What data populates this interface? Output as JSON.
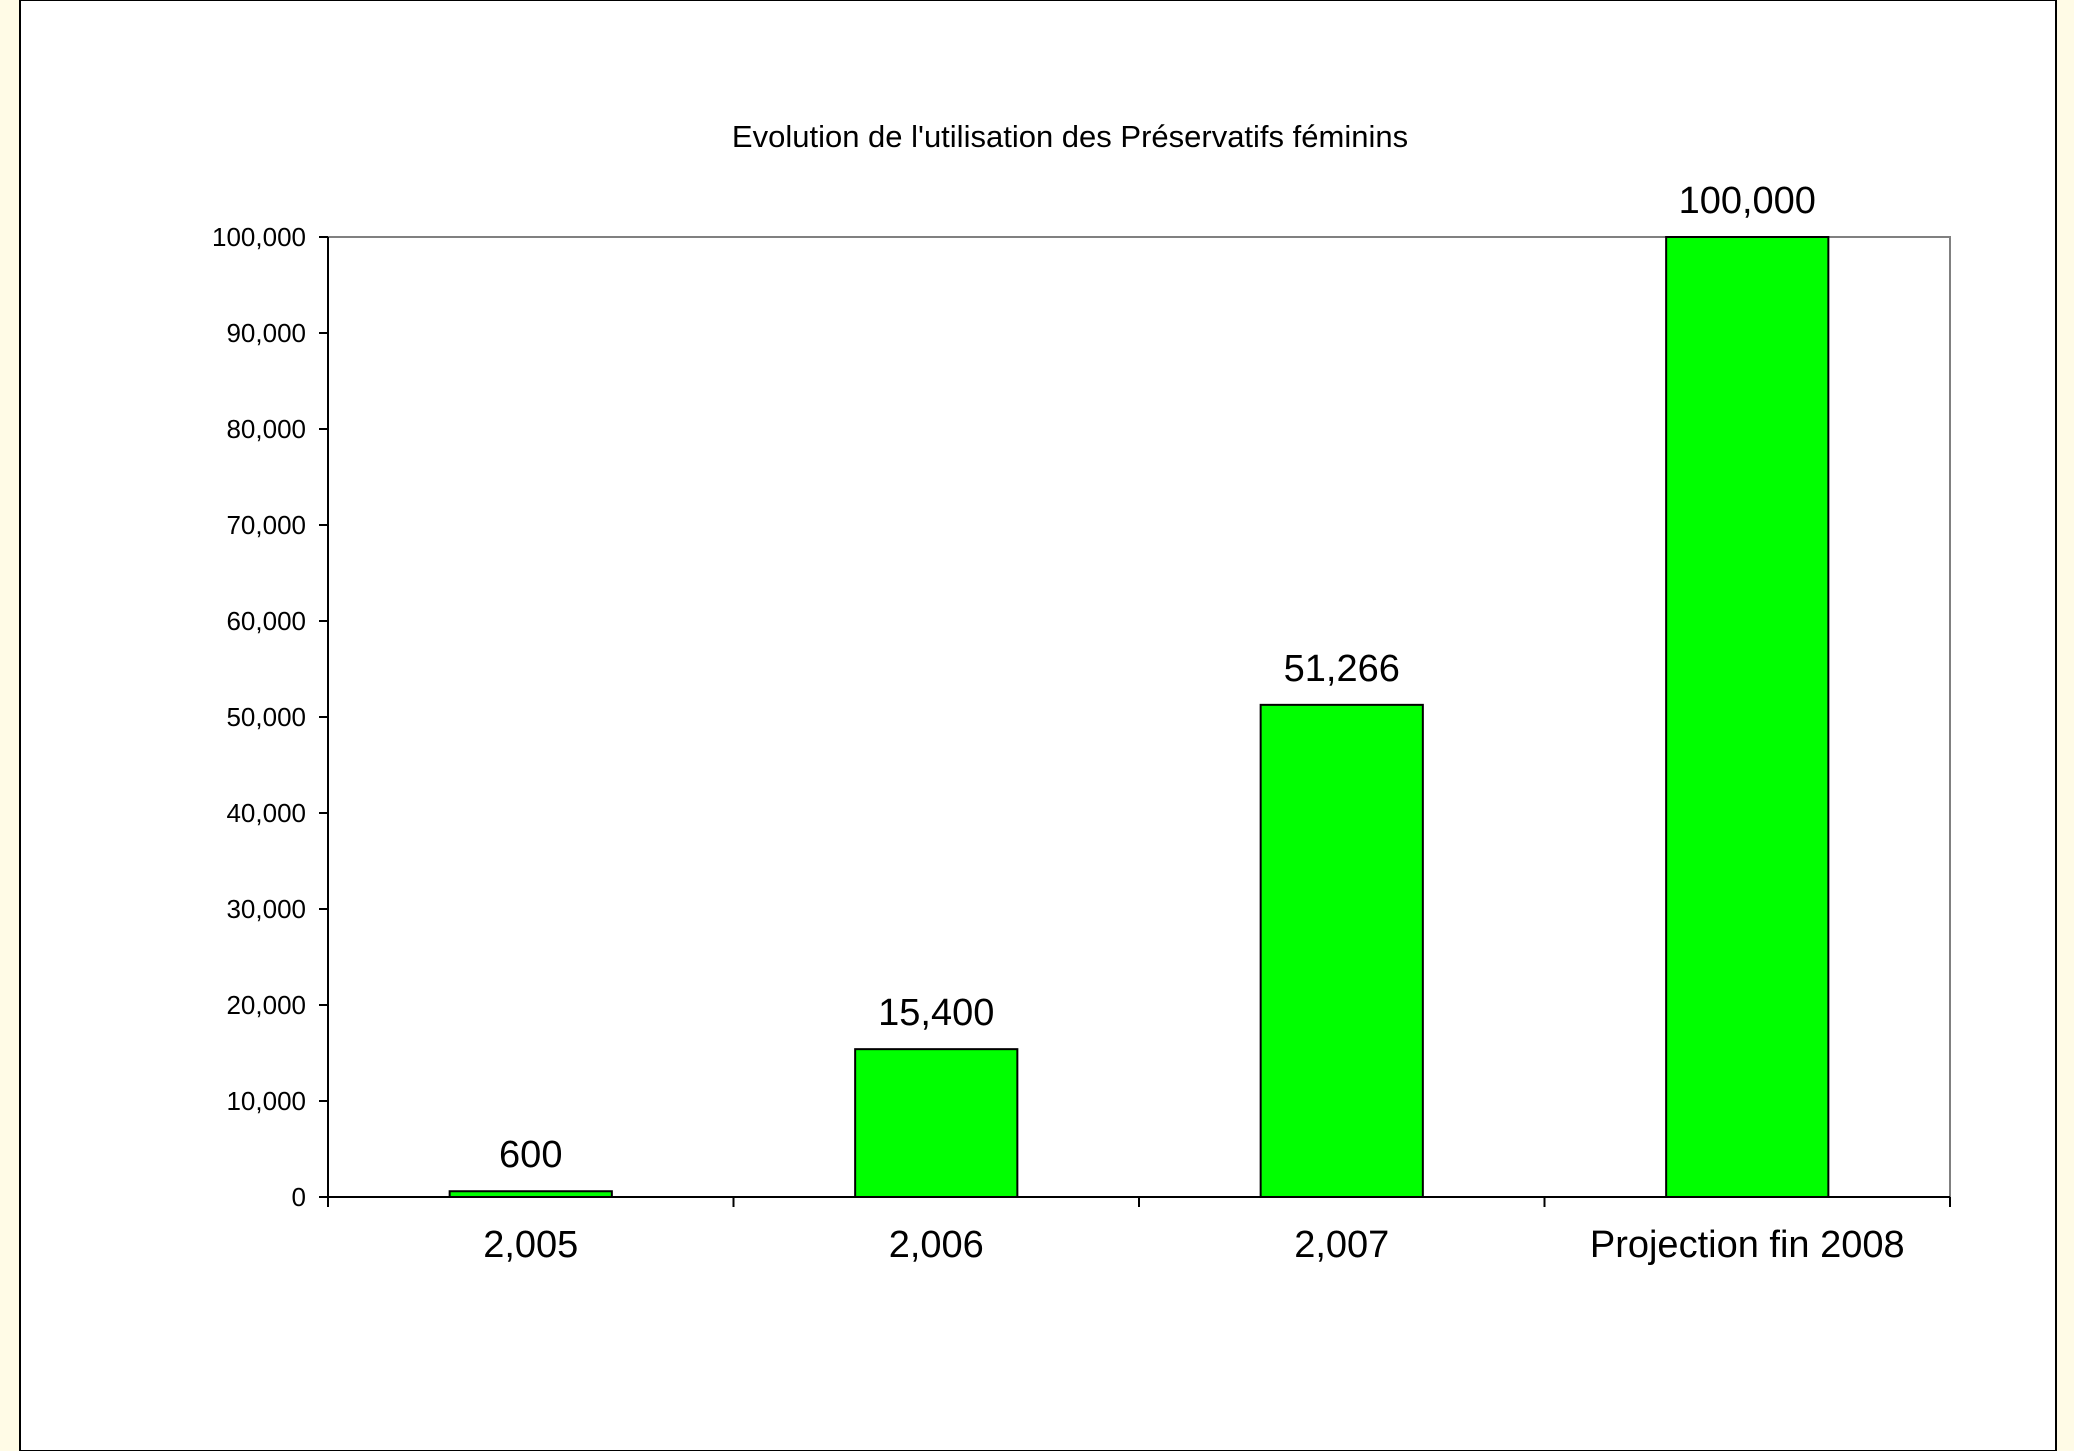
{
  "chart_data": {
    "type": "bar",
    "title": "Evolution de l'utilisation des Préservatifs féminins",
    "categories": [
      "2,005",
      "2,006",
      "2,007",
      "Projection fin 2008"
    ],
    "values": [
      600,
      15400,
      51266,
      100000
    ],
    "data_labels": [
      "600",
      "15,400",
      "51,266",
      "100,000"
    ],
    "xlabel": "",
    "ylabel": "",
    "ylim": [
      0,
      100000
    ],
    "yticks": [
      0,
      10000,
      20000,
      30000,
      40000,
      50000,
      60000,
      70000,
      80000,
      90000,
      100000
    ],
    "ytick_labels": [
      "0",
      "10,000",
      "20,000",
      "30,000",
      "40,000",
      "50,000",
      "60,000",
      "70,000",
      "80,000",
      "90,000",
      "100,000"
    ],
    "grid": false,
    "legend": "none",
    "bar_color": "#00ff00",
    "bar_border_color": "#000000",
    "background_color": "#ffffff",
    "frame_color": "#fffbe6"
  }
}
